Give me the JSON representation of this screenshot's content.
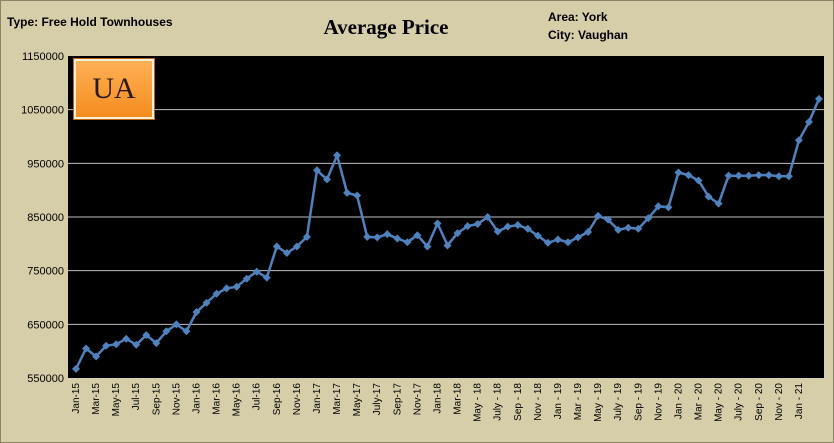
{
  "header": {
    "type_label": "Type: Free Hold Townhouses",
    "area_label": "Area: York",
    "city_label": "City: Vaughan"
  },
  "logo_text": "UA",
  "colors": {
    "line": "#4f81bd",
    "plot_bg": "#000000",
    "frame_bg": "#d6cda9",
    "grid": "#bfbfbf"
  },
  "chart_data": {
    "type": "line",
    "title": "Average Price",
    "xlabel": "",
    "ylabel": "",
    "ylim": [
      550000,
      1150000
    ],
    "yticks": [
      "550000",
      "650000",
      "750000",
      "850000",
      "950000",
      "1050000",
      "1150000"
    ],
    "xtick_labels": [
      "Jan-15",
      "Mar-15",
      "May-15",
      "Jul-15",
      "Sep-15",
      "Nov-15",
      "Jan-16",
      "Mar-16",
      "May-16",
      "Jul-16",
      "Sep-16",
      "Nov-16",
      "Jan-17",
      "Mar-17",
      "May-17",
      "July-17",
      "Sep-17",
      "Nov-17",
      "Jan-18",
      "Mar-18",
      "May - 18",
      "July - 18",
      "Sep - 18",
      "Nov - 18",
      "Jan - 19",
      "Mar - 19",
      "May - 19",
      "July - 19",
      "Sep - 19",
      "Nov - 19",
      "Jan - 20",
      "Mar - 20",
      "May - 20",
      "July - 20",
      "Sep - 20",
      "Nov - 20",
      "Jan - 21"
    ],
    "grid": true,
    "series": [
      {
        "values": [
          567000,
          605000,
          590000,
          610000,
          613000,
          623000,
          612000,
          630000,
          615000,
          637000,
          650000,
          637000,
          673000,
          690000,
          707000,
          717000,
          720000,
          735000,
          748000,
          737000,
          795000,
          783000,
          795000,
          813000,
          937000,
          920000,
          965000,
          895000,
          890000,
          813000,
          812000,
          818000,
          810000,
          803000,
          816000,
          795000,
          838000,
          797000,
          820000,
          833000,
          837000,
          850000,
          823000,
          832000,
          835000,
          828000,
          815000,
          802000,
          808000,
          803000,
          812000,
          822000,
          852000,
          845000,
          826000,
          830000,
          828000,
          848000,
          870000,
          868000,
          933000,
          928000,
          918000,
          888000,
          875000,
          927000,
          927000,
          927000,
          928000,
          928000,
          926000,
          926000,
          993000,
          1027000,
          1070000
        ]
      }
    ]
  }
}
